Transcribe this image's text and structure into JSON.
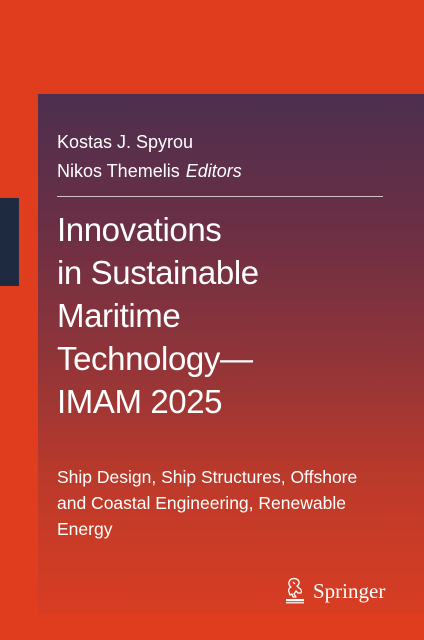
{
  "editors": {
    "names": [
      "Kostas J. Spyrou",
      "Nikos Themelis"
    ],
    "role": "Editors"
  },
  "title": {
    "lines": [
      "Innovations",
      "in Sustainable",
      "Maritime",
      "Technology—",
      "IMAM 2025"
    ]
  },
  "subtitle": {
    "lines": [
      "Ship Design, Ship Structures, Offshore",
      "and Coastal Engineering, Renewable",
      "Energy"
    ]
  },
  "publisher": {
    "name": "Springer",
    "logo_icon": "springer-horse-icon"
  },
  "colors": {
    "background": "#e03d1f",
    "panel_top": "#4d2f4f",
    "panel_bottom": "#d83d22",
    "spine_tab": "#1e2a40",
    "text": "#ffffff"
  }
}
